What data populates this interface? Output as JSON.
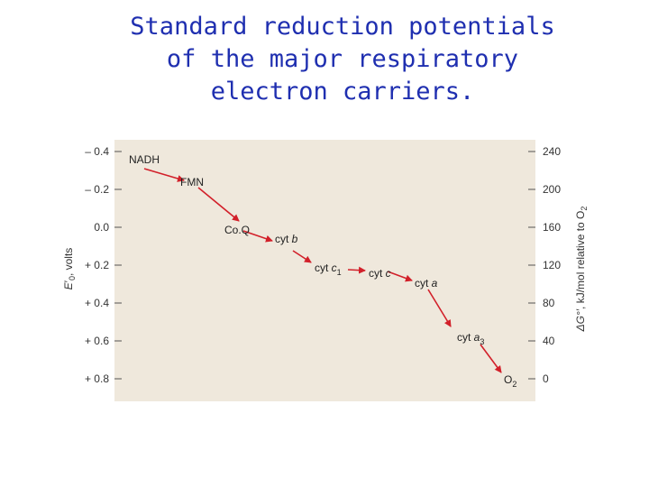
{
  "title_lines": [
    "Standard reduction potentials",
    "of the major respiratory",
    "electron carriers."
  ],
  "colors": {
    "title": "#1f2fb0",
    "panel": "#efe8dc",
    "arrow": "#d2202a",
    "text": "#222222"
  },
  "left_axis": {
    "label_main": "E",
    "label_prime": "′",
    "label_sub": "0",
    "label_rest": ", volts",
    "ticks": [
      "– 0.4",
      "– 0.2",
      "0.0",
      "+ 0.2",
      "+ 0.4",
      "+ 0.6",
      "+ 0.8"
    ]
  },
  "right_axis": {
    "label_delta": "ΔG°′",
    "label_rest": ", kJ/mol relative to O",
    "label_sub": "2",
    "ticks": [
      "240",
      "200",
      "160",
      "120",
      "80",
      "40",
      "0"
    ]
  },
  "carriers": [
    {
      "name": "NADH",
      "italic": "",
      "sub": "",
      "e0": -0.32
    },
    {
      "name": "FMN",
      "italic": "",
      "sub": "",
      "e0": -0.22
    },
    {
      "name": "Co.Q",
      "italic": "",
      "sub": "",
      "e0": 0.0
    },
    {
      "name": "cyt ",
      "italic": "b",
      "sub": "",
      "e0": 0.06
    },
    {
      "name": "cyt ",
      "italic": "c",
      "sub": "1",
      "e0": 0.22
    },
    {
      "name": "cyt ",
      "italic": "c",
      "sub": "",
      "e0": 0.25
    },
    {
      "name": "cyt ",
      "italic": "a",
      "sub": "",
      "e0": 0.29
    },
    {
      "name": "cyt ",
      "italic": "a",
      "sub": "3",
      "e0": 0.55
    },
    {
      "name": "O",
      "italic": "",
      "sub": "2",
      "e0": 0.82
    }
  ]
}
